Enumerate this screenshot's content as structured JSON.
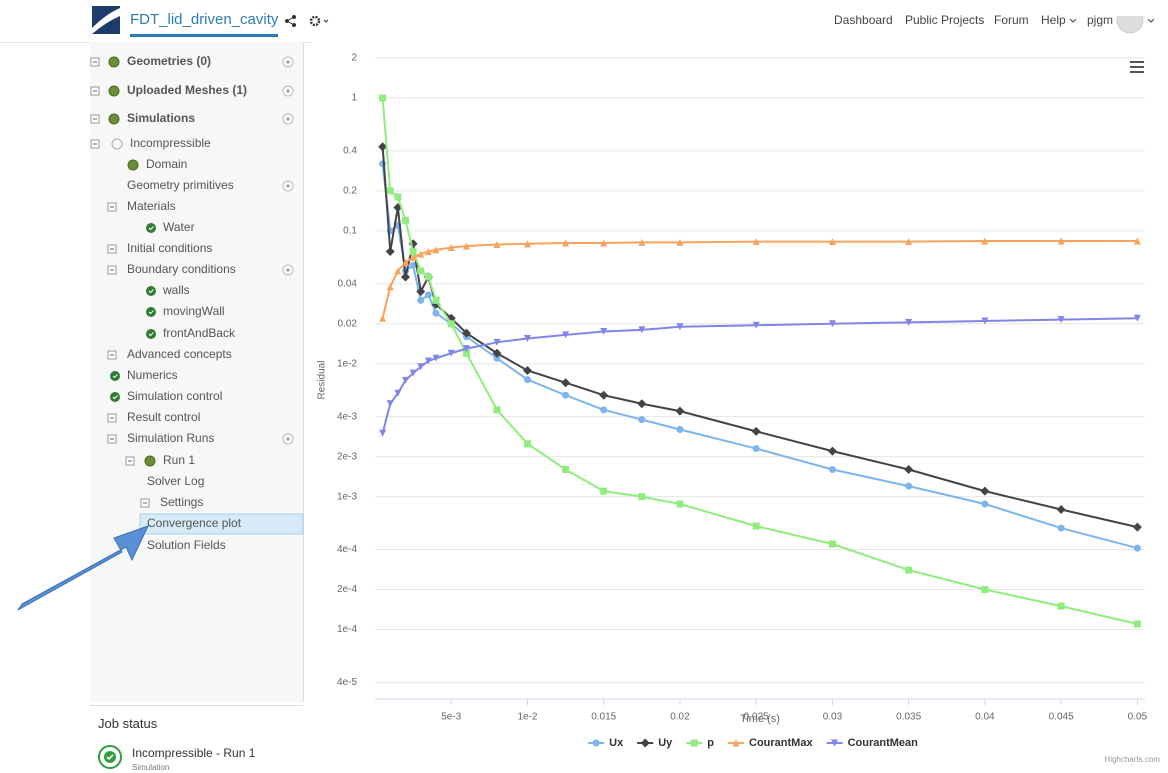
{
  "header": {
    "project": "FDT_lid_driven_cavity",
    "nav": [
      "Dashboard",
      "Public Projects",
      "Forum",
      "Help",
      "pjgm"
    ]
  },
  "sidebar": {
    "items": [
      "Geometries (0)",
      "Uploaded Meshes (1)",
      "Simulations",
      "Incompressible",
      "Domain",
      "Geometry primitives",
      "Materials",
      "Water",
      "Initial conditions",
      "Boundary conditions",
      "walls",
      "movingWall",
      "frontAndBack",
      "Advanced concepts",
      "Numerics",
      "Simulation control",
      "Result control",
      "Simulation Runs",
      "Run 1",
      "Solver Log",
      "Settings",
      "Convergence plot",
      "Solution Fields"
    ]
  },
  "job_status": {
    "title": "Job status",
    "job": "Incompressible - Run 1",
    "kind": "Simulation"
  },
  "chart_data": {
    "type": "line",
    "y_label": "Residual",
    "x_label": "Time (s)",
    "credit": "Highcharts.com",
    "log_y": true,
    "grid": true,
    "legend": "bottom",
    "x": [
      0.0005,
      0.001,
      0.0015,
      0.002,
      0.0025,
      0.003,
      0.0035,
      0.004,
      0.005,
      0.006,
      0.008,
      0.01,
      0.0125,
      0.015,
      0.0175,
      0.02,
      0.025,
      0.03,
      0.035,
      0.04,
      0.045,
      0.05
    ],
    "xlim": [
      0,
      0.0505
    ],
    "xticks": [
      {
        "value": 0.005,
        "label": "5e-3"
      },
      {
        "value": 0.01,
        "label": "1e-2"
      },
      0.015,
      0.02,
      0.025,
      0.03,
      0.035,
      0.04,
      0.045,
      0.05
    ],
    "ylim": [
      3e-05,
      2
    ],
    "yticks": [
      {
        "value": 4e-05,
        "label": "4e-5"
      },
      {
        "value": 0.0001,
        "label": "1e-4"
      },
      {
        "value": 0.0002,
        "label": "2e-4"
      },
      {
        "value": 0.0004,
        "label": "4e-4"
      },
      {
        "value": 0.001,
        "label": "1e-3"
      },
      {
        "value": 0.002,
        "label": "2e-3"
      },
      {
        "value": 0.004,
        "label": "4e-3"
      },
      {
        "value": 0.01,
        "label": "1e-2"
      },
      0.02,
      0.04,
      0.1,
      0.2,
      0.4,
      1,
      2
    ],
    "series": [
      {
        "name": "Ux",
        "color": "#7cb5ec",
        "marker": "circle",
        "values": [
          0.32,
          0.1,
          0.11,
          0.05,
          0.055,
          0.03,
          0.033,
          0.024,
          0.02,
          0.016,
          0.011,
          0.0076,
          0.0058,
          0.0045,
          0.0038,
          0.0032,
          0.0023,
          0.0016,
          0.0012,
          0.00088,
          0.00058,
          0.00041
        ]
      },
      {
        "name": "Uy",
        "color": "#434348",
        "marker": "diamond",
        "values": [
          0.43,
          0.07,
          0.15,
          0.045,
          0.08,
          0.035,
          0.045,
          0.028,
          0.022,
          0.017,
          0.012,
          0.0089,
          0.0072,
          0.0058,
          0.005,
          0.0044,
          0.0031,
          0.0022,
          0.0016,
          0.0011,
          0.0008,
          0.00059
        ]
      },
      {
        "name": "p",
        "color": "#90ed7d",
        "marker": "square",
        "values": [
          1,
          0.2,
          0.18,
          0.12,
          0.07,
          0.05,
          0.045,
          0.03,
          0.02,
          0.012,
          0.0045,
          0.0025,
          0.0016,
          0.0011,
          0.001,
          0.00088,
          0.0006,
          0.00044,
          0.00028,
          0.0002,
          0.00015,
          0.00011
        ]
      },
      {
        "name": "CourantMax",
        "color": "#f7a35c",
        "marker": "triangle",
        "values": [
          0.022,
          0.038,
          0.05,
          0.058,
          0.063,
          0.067,
          0.07,
          0.072,
          0.075,
          0.077,
          0.079,
          0.08,
          0.081,
          0.081,
          0.082,
          0.082,
          0.083,
          0.083,
          0.083,
          0.084,
          0.084,
          0.084
        ]
      },
      {
        "name": "CourantMean",
        "color": "#8085e9",
        "marker": "triangle-down",
        "values": [
          0.003,
          0.005,
          0.006,
          0.0075,
          0.0085,
          0.0095,
          0.0105,
          0.011,
          0.012,
          0.013,
          0.0145,
          0.0155,
          0.0165,
          0.0175,
          0.018,
          0.019,
          0.0195,
          0.02,
          0.0205,
          0.021,
          0.0215,
          0.022
        ]
      }
    ]
  }
}
